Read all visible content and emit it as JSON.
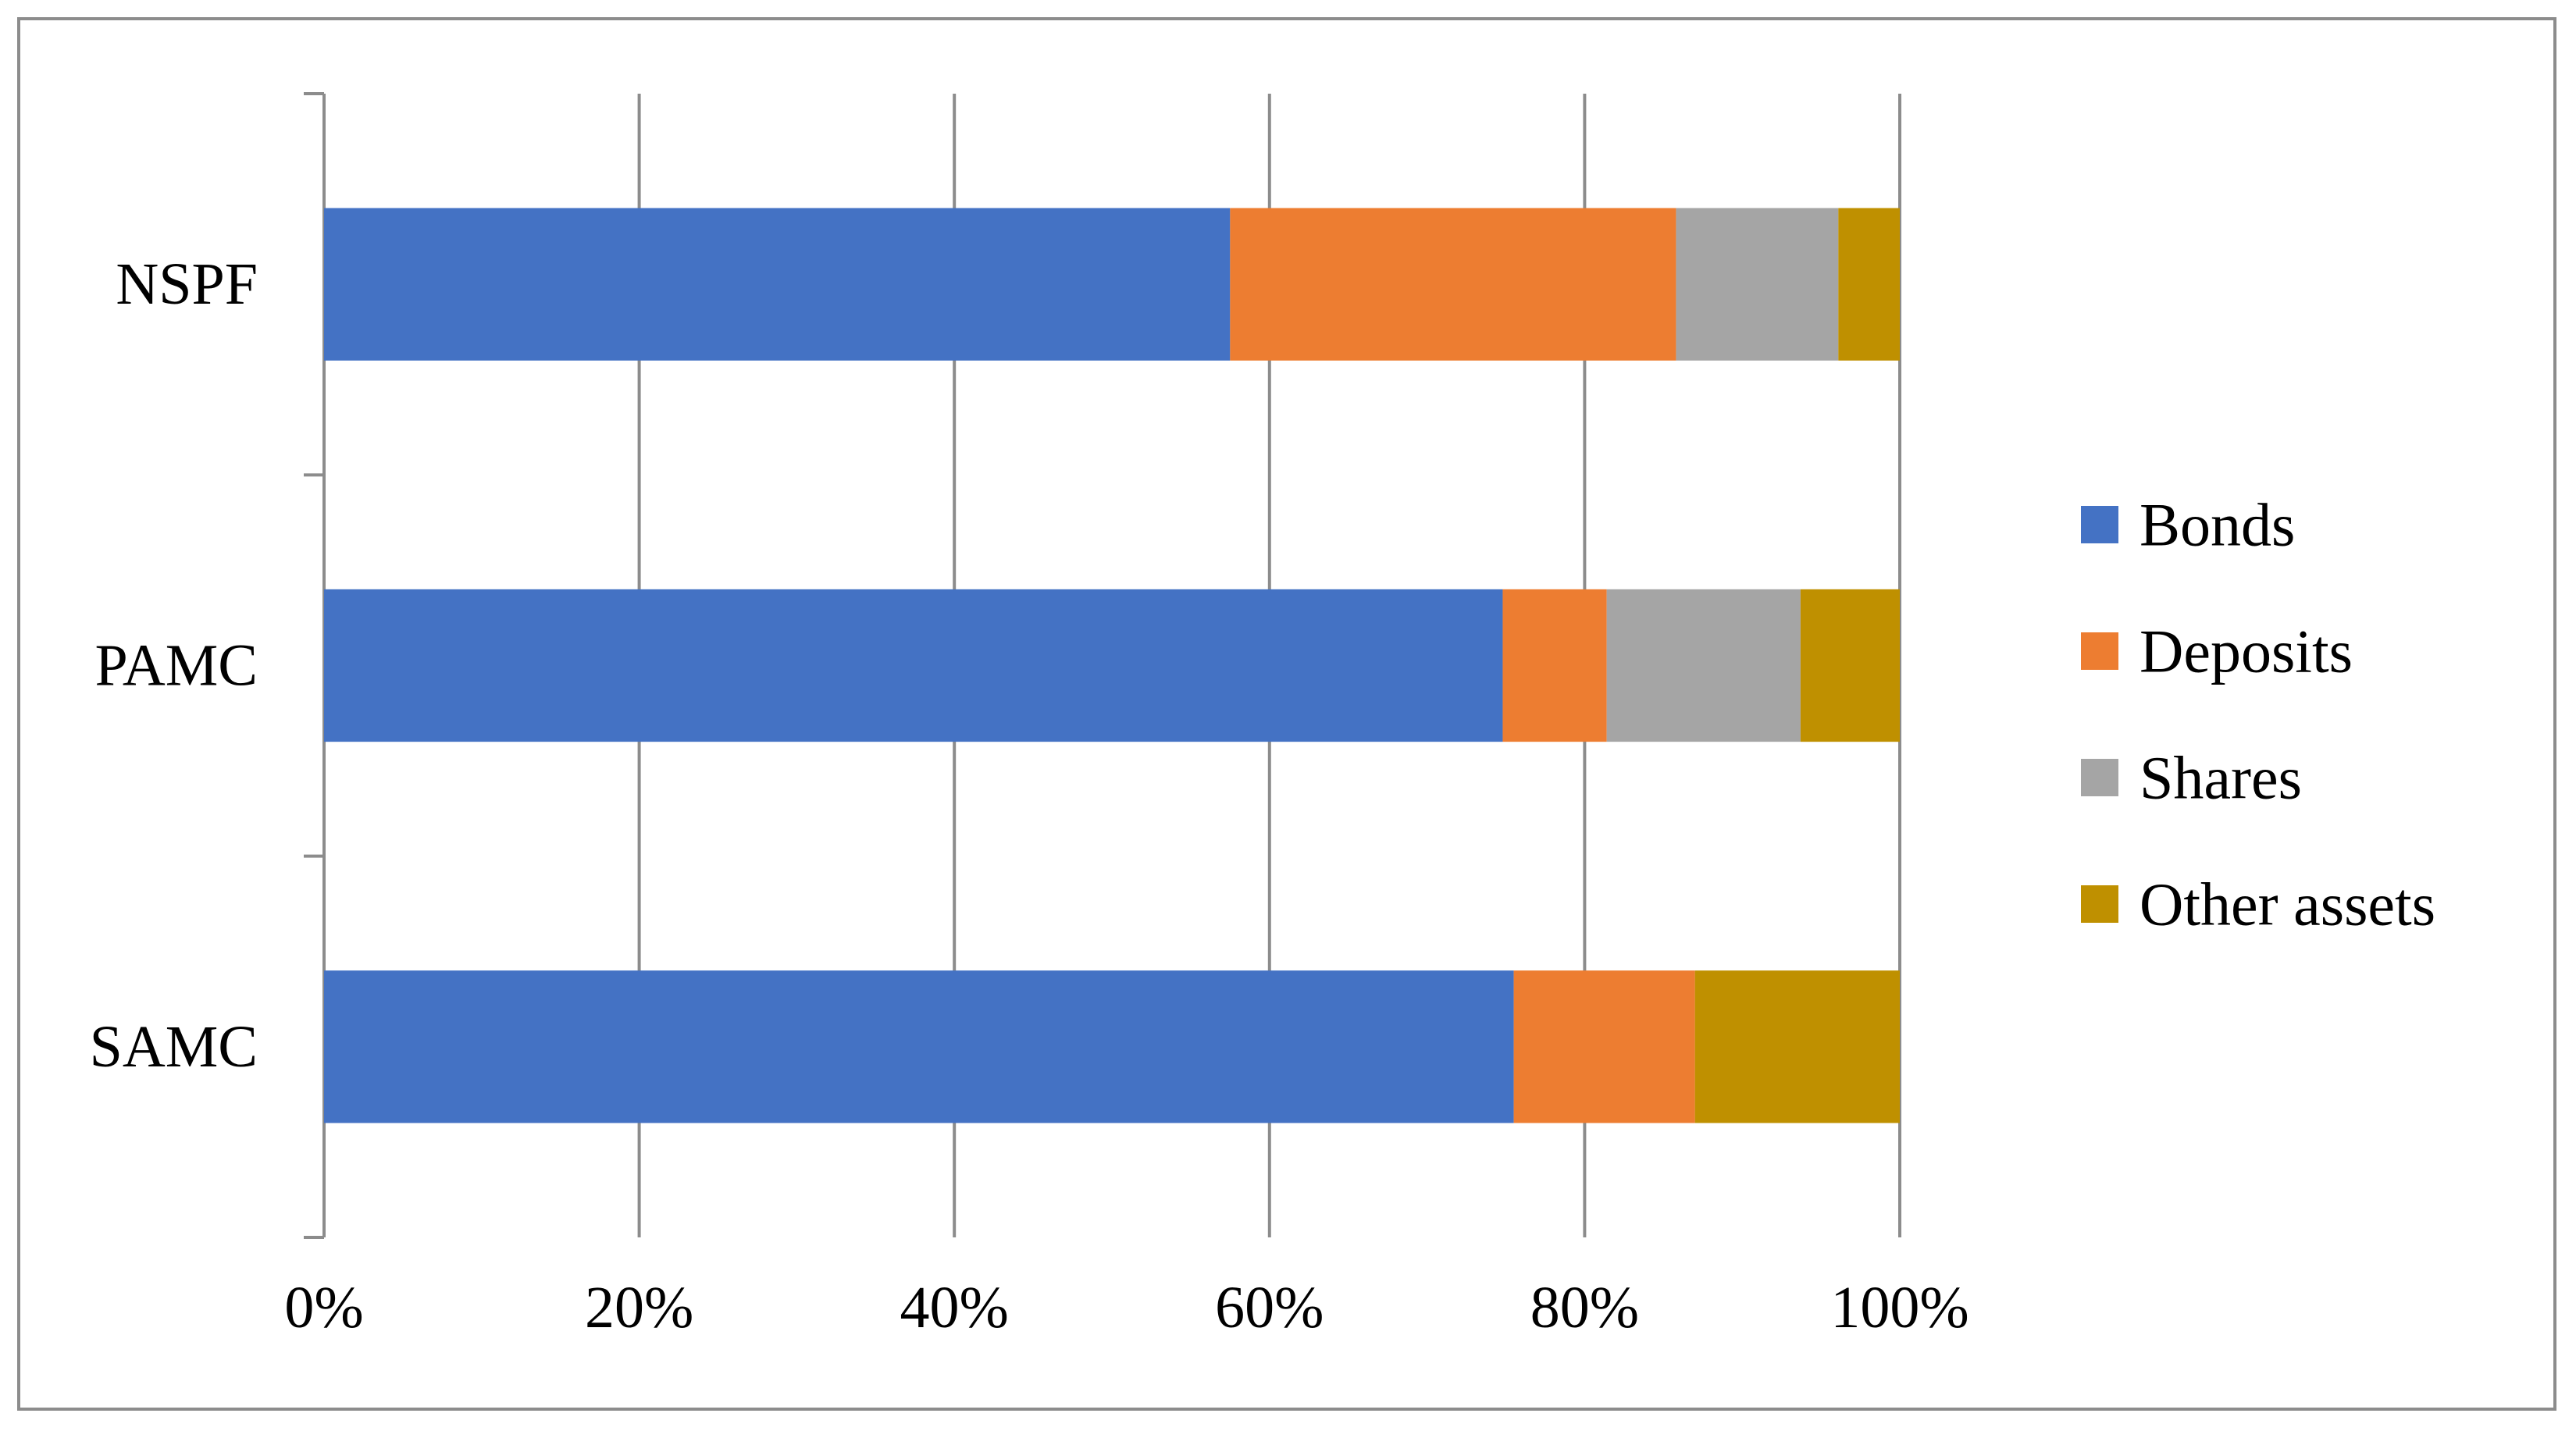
{
  "chart_data": {
    "type": "bar",
    "orientation": "horizontal",
    "stacked": "percent",
    "categories": [
      "NSPF",
      "PAMC",
      "SAMC"
    ],
    "series": [
      {
        "name": "Bonds",
        "color": "#4472C4",
        "values": [
          57.5,
          74.8,
          75.5
        ]
      },
      {
        "name": "Deposits",
        "color": "#ED7D31",
        "values": [
          28.3,
          6.6,
          11.5
        ]
      },
      {
        "name": "Shares",
        "color": "#A5A5A5",
        "values": [
          10.3,
          12.3,
          0.0
        ]
      },
      {
        "name": "Other assets",
        "color": "#BF9000",
        "values": [
          3.9,
          6.3,
          13.0
        ]
      }
    ],
    "x_ticks": [
      "0%",
      "20%",
      "40%",
      "60%",
      "80%",
      "100%"
    ],
    "xlim": [
      0,
      100
    ],
    "grid": "vertical",
    "legend_position": "right",
    "title": "",
    "xlabel": "",
    "ylabel": ""
  }
}
